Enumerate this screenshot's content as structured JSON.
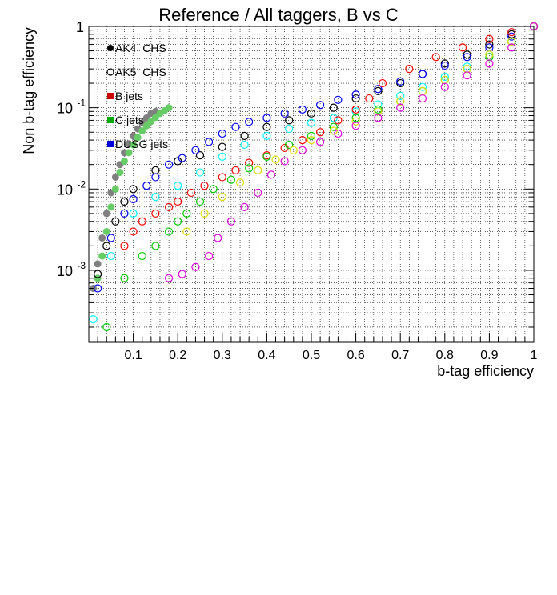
{
  "chart_data": {
    "type": "scatter",
    "title": "Reference / All taggers, B vs C",
    "xlabel": "b-tag efficiency",
    "ylabel": "Non b-tag efficiency",
    "xlim": [
      0.0,
      1.0
    ],
    "ylim": [
      0.00013,
      1.0
    ],
    "yscale": "log",
    "grid": true,
    "legend_position": "top-left",
    "x_ticks": [
      "0.1",
      "0.2",
      "0.3",
      "0.4",
      "0.5",
      "0.6",
      "0.7",
      "0.8",
      "0.9",
      "1"
    ],
    "y_ticks": [
      {
        "value": 0.001,
        "base": "10",
        "exp": "-3"
      },
      {
        "value": 0.01,
        "base": "10",
        "exp": "-2"
      },
      {
        "value": 0.1,
        "base": "10",
        "exp": "-1"
      },
      {
        "value": 1,
        "base": "1",
        "exp": ""
      }
    ],
    "legend": [
      {
        "label": "AK4_CHS",
        "marker": "filled-circle",
        "color": "#000000"
      },
      {
        "label": "AK5_CHS",
        "marker": "open-circle",
        "color": "#000000"
      },
      {
        "label": "B jets",
        "marker": "square",
        "color": "#cc0000"
      },
      {
        "label": "C jets",
        "marker": "square",
        "color": "#00aa00"
      },
      {
        "label": "DUSG jets",
        "marker": "square",
        "color": "#0000dd"
      }
    ],
    "series": [
      {
        "color": "#808080",
        "marker": "filled",
        "points": [
          [
            0.01,
            0.0006
          ],
          [
            0.02,
            0.0012
          ],
          [
            0.03,
            0.0025
          ],
          [
            0.04,
            0.005
          ],
          [
            0.05,
            0.009
          ],
          [
            0.06,
            0.014
          ],
          [
            0.07,
            0.02
          ],
          [
            0.08,
            0.028
          ],
          [
            0.09,
            0.036
          ],
          [
            0.1,
            0.045
          ],
          [
            0.11,
            0.055
          ],
          [
            0.12,
            0.065
          ],
          [
            0.13,
            0.075
          ],
          [
            0.14,
            0.085
          ],
          [
            0.15,
            0.09
          ]
        ]
      },
      {
        "color": "#66cc66",
        "marker": "filled",
        "points": [
          [
            0.02,
            0.0008
          ],
          [
            0.03,
            0.0015
          ],
          [
            0.04,
            0.003
          ],
          [
            0.05,
            0.006
          ],
          [
            0.06,
            0.01
          ],
          [
            0.07,
            0.016
          ],
          [
            0.08,
            0.022
          ],
          [
            0.09,
            0.028
          ],
          [
            0.1,
            0.035
          ],
          [
            0.11,
            0.043
          ],
          [
            0.12,
            0.052
          ],
          [
            0.13,
            0.06
          ],
          [
            0.14,
            0.068
          ],
          [
            0.15,
            0.076
          ],
          [
            0.16,
            0.085
          ],
          [
            0.17,
            0.092
          ],
          [
            0.18,
            0.1
          ]
        ]
      },
      {
        "color": "#000000",
        "marker": "open",
        "points": [
          [
            0.02,
            0.0009
          ],
          [
            0.04,
            0.002
          ],
          [
            0.06,
            0.004
          ],
          [
            0.08,
            0.007
          ],
          [
            0.1,
            0.01
          ],
          [
            0.15,
            0.017
          ],
          [
            0.2,
            0.022
          ],
          [
            0.25,
            0.026
          ],
          [
            0.3,
            0.033
          ],
          [
            0.35,
            0.045
          ],
          [
            0.4,
            0.058
          ],
          [
            0.45,
            0.07
          ],
          [
            0.5,
            0.085
          ],
          [
            0.55,
            0.1
          ],
          [
            0.6,
            0.13
          ],
          [
            0.65,
            0.16
          ],
          [
            0.7,
            0.2
          ],
          [
            0.75,
            0.26
          ],
          [
            0.8,
            0.35
          ],
          [
            0.85,
            0.45
          ],
          [
            0.9,
            0.6
          ],
          [
            0.95,
            0.8
          ],
          [
            1.0,
            1.0
          ]
        ]
      },
      {
        "color": "#0000ff",
        "marker": "open",
        "points": [
          [
            0.02,
            0.0006
          ],
          [
            0.05,
            0.0025
          ],
          [
            0.08,
            0.005
          ],
          [
            0.1,
            0.0075
          ],
          [
            0.13,
            0.011
          ],
          [
            0.15,
            0.014
          ],
          [
            0.18,
            0.02
          ],
          [
            0.21,
            0.024
          ],
          [
            0.24,
            0.03
          ],
          [
            0.27,
            0.038
          ],
          [
            0.3,
            0.048
          ],
          [
            0.33,
            0.058
          ],
          [
            0.36,
            0.067
          ],
          [
            0.4,
            0.075
          ],
          [
            0.44,
            0.085
          ],
          [
            0.48,
            0.095
          ],
          [
            0.52,
            0.108
          ],
          [
            0.56,
            0.125
          ],
          [
            0.6,
            0.145
          ],
          [
            0.65,
            0.17
          ],
          [
            0.7,
            0.21
          ],
          [
            0.75,
            0.26
          ],
          [
            0.8,
            0.33
          ],
          [
            0.85,
            0.42
          ],
          [
            0.9,
            0.55
          ],
          [
            0.95,
            0.75
          ],
          [
            1.0,
            1.0
          ]
        ]
      },
      {
        "color": "#00ffff",
        "marker": "open",
        "points": [
          [
            0.01,
            0.00025
          ],
          [
            0.05,
            0.0015
          ],
          [
            0.1,
            0.005
          ],
          [
            0.15,
            0.008
          ],
          [
            0.2,
            0.011
          ],
          [
            0.25,
            0.016
          ],
          [
            0.3,
            0.025
          ],
          [
            0.35,
            0.035
          ],
          [
            0.4,
            0.045
          ],
          [
            0.45,
            0.055
          ],
          [
            0.5,
            0.065
          ],
          [
            0.55,
            0.075
          ],
          [
            0.6,
            0.09
          ],
          [
            0.65,
            0.11
          ],
          [
            0.7,
            0.14
          ],
          [
            0.75,
            0.18
          ],
          [
            0.8,
            0.24
          ],
          [
            0.85,
            0.32
          ],
          [
            0.9,
            0.45
          ],
          [
            0.95,
            0.65
          ],
          [
            1.0,
            1.0
          ]
        ]
      },
      {
        "color": "#ff0000",
        "marker": "open",
        "points": [
          [
            0.08,
            0.002
          ],
          [
            0.1,
            0.003
          ],
          [
            0.12,
            0.004
          ],
          [
            0.15,
            0.005
          ],
          [
            0.18,
            0.006
          ],
          [
            0.2,
            0.007
          ],
          [
            0.23,
            0.009
          ],
          [
            0.26,
            0.011
          ],
          [
            0.3,
            0.014
          ],
          [
            0.33,
            0.017
          ],
          [
            0.36,
            0.021
          ],
          [
            0.4,
            0.026
          ],
          [
            0.44,
            0.032
          ],
          [
            0.48,
            0.04
          ],
          [
            0.52,
            0.05
          ],
          [
            0.56,
            0.07
          ],
          [
            0.6,
            0.095
          ],
          [
            0.63,
            0.13
          ],
          [
            0.66,
            0.2
          ],
          [
            0.72,
            0.3
          ],
          [
            0.78,
            0.42
          ],
          [
            0.84,
            0.55
          ],
          [
            0.9,
            0.7
          ],
          [
            0.95,
            0.85
          ],
          [
            1.0,
            1.0
          ]
        ]
      },
      {
        "color": "#00cc00",
        "marker": "open",
        "points": [
          [
            0.04,
            0.0002
          ],
          [
            0.08,
            0.0008
          ],
          [
            0.12,
            0.0015
          ],
          [
            0.15,
            0.002
          ],
          [
            0.18,
            0.003
          ],
          [
            0.2,
            0.004
          ],
          [
            0.22,
            0.005
          ],
          [
            0.25,
            0.007
          ],
          [
            0.28,
            0.01
          ],
          [
            0.32,
            0.013
          ],
          [
            0.36,
            0.018
          ],
          [
            0.4,
            0.025
          ],
          [
            0.45,
            0.035
          ],
          [
            0.5,
            0.045
          ],
          [
            0.55,
            0.058
          ],
          [
            0.6,
            0.075
          ],
          [
            0.65,
            0.095
          ],
          [
            0.7,
            0.12
          ],
          [
            0.75,
            0.16
          ],
          [
            0.8,
            0.22
          ],
          [
            0.85,
            0.3
          ],
          [
            0.9,
            0.42
          ],
          [
            0.95,
            0.65
          ],
          [
            1.0,
            1.0
          ]
        ]
      },
      {
        "color": "#dddd00",
        "marker": "open",
        "points": [
          [
            0.22,
            0.003
          ],
          [
            0.26,
            0.005
          ],
          [
            0.3,
            0.008
          ],
          [
            0.34,
            0.012
          ],
          [
            0.38,
            0.017
          ],
          [
            0.42,
            0.023
          ],
          [
            0.46,
            0.03
          ],
          [
            0.5,
            0.04
          ],
          [
            0.55,
            0.052
          ],
          [
            0.6,
            0.068
          ],
          [
            0.65,
            0.09
          ],
          [
            0.7,
            0.12
          ],
          [
            0.75,
            0.16
          ],
          [
            0.8,
            0.22
          ],
          [
            0.85,
            0.3
          ],
          [
            0.9,
            0.45
          ],
          [
            0.95,
            0.65
          ],
          [
            1.0,
            1.0
          ]
        ]
      },
      {
        "color": "#dd00dd",
        "marker": "open",
        "points": [
          [
            0.18,
            0.0008
          ],
          [
            0.21,
            0.0009
          ],
          [
            0.24,
            0.0011
          ],
          [
            0.27,
            0.0015
          ],
          [
            0.29,
            0.0025
          ],
          [
            0.32,
            0.004
          ],
          [
            0.35,
            0.006
          ],
          [
            0.38,
            0.009
          ],
          [
            0.41,
            0.015
          ],
          [
            0.44,
            0.022
          ],
          [
            0.48,
            0.03
          ],
          [
            0.52,
            0.038
          ],
          [
            0.56,
            0.048
          ],
          [
            0.6,
            0.06
          ],
          [
            0.65,
            0.075
          ],
          [
            0.7,
            0.1
          ],
          [
            0.75,
            0.13
          ],
          [
            0.8,
            0.18
          ],
          [
            0.85,
            0.25
          ],
          [
            0.9,
            0.35
          ],
          [
            0.95,
            0.55
          ],
          [
            1.0,
            1.0
          ]
        ]
      }
    ]
  }
}
